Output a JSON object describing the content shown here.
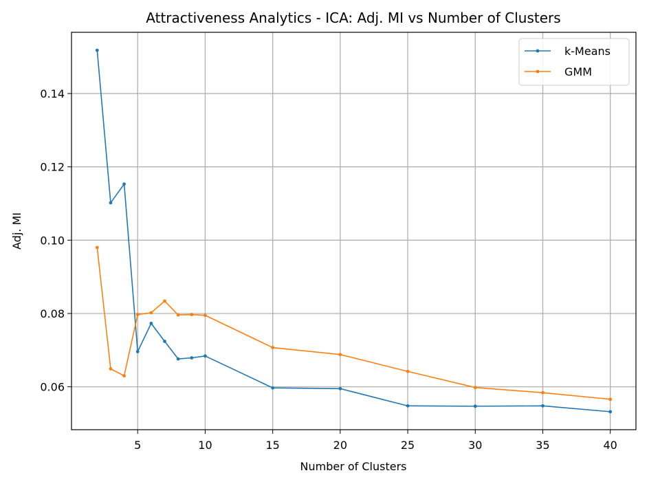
{
  "chart_data": {
    "type": "line",
    "title": "Attractiveness Analytics - ICA: Adj. MI vs Number of Clusters",
    "xlabel": "Number of Clusters",
    "ylabel": "Adj. MI",
    "xlim": [
      0.1,
      41.9
    ],
    "ylim": [
      0.0483,
      0.1567
    ],
    "xticks": [
      5,
      10,
      15,
      20,
      25,
      30,
      35,
      40
    ],
    "yticks": [
      0.06,
      0.08,
      0.1,
      0.12,
      0.14
    ],
    "ytick_labels": [
      "0.06",
      "0.08",
      "0.10",
      "0.12",
      "0.14"
    ],
    "grid": true,
    "legend_position": "top-right",
    "x": [
      2,
      3,
      4,
      5,
      6,
      7,
      8,
      9,
      10,
      15,
      20,
      25,
      30,
      35,
      40
    ],
    "series": [
      {
        "name": "k-Means",
        "color": "#1f77b4",
        "values": [
          0.1518,
          0.1102,
          0.1153,
          0.0696,
          0.0773,
          0.0724,
          0.0676,
          0.0679,
          0.0684,
          0.0597,
          0.0595,
          0.0548,
          0.0547,
          0.0548,
          0.0532
        ]
      },
      {
        "name": "GMM",
        "color": "#ff7f0e",
        "values": [
          0.098,
          0.0649,
          0.063,
          0.0797,
          0.0802,
          0.0834,
          0.0796,
          0.0797,
          0.0795,
          0.0707,
          0.0688,
          0.0642,
          0.0598,
          0.0584,
          0.0566
        ]
      }
    ]
  }
}
